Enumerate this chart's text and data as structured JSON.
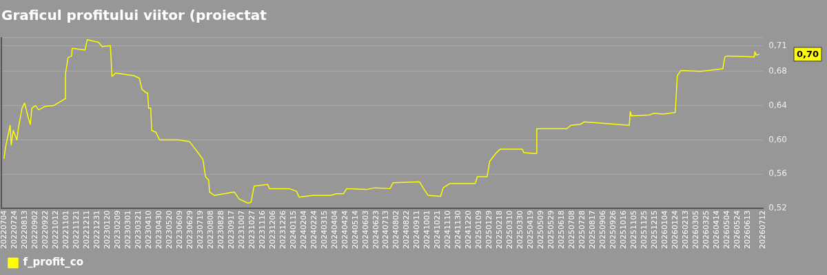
{
  "chart_data": {
    "type": "line",
    "title": "Graficul profitului viitor (proiectat",
    "legend": "bottom left",
    "grid": "y",
    "xlim": [
      "2022-06-29",
      "2026-07-12"
    ],
    "ylim": [
      0.52,
      0.72
    ],
    "yticks": [
      {
        "value": 0.52,
        "label": "0,52"
      },
      {
        "value": 0.56,
        "label": "0,56"
      },
      {
        "value": 0.6,
        "label": "0,60"
      },
      {
        "value": 0.64,
        "label": "0,64"
      },
      {
        "value": 0.68,
        "label": "0,68"
      },
      {
        "value": 0.71,
        "label": "0,71"
      },
      {
        "value": 0.72,
        "label": null
      }
    ],
    "xticks": [
      {
        "value": "2022-07-04",
        "label": "20220704"
      },
      {
        "value": "2022-07-24",
        "label": "20220724"
      },
      {
        "value": "2022-08-13",
        "label": "20220813"
      },
      {
        "value": "2022-09-02",
        "label": "20220902"
      },
      {
        "value": "2022-09-22",
        "label": "20220922"
      },
      {
        "value": "2022-10-12",
        "label": "20221012"
      },
      {
        "value": "2022-11-01",
        "label": "20221101"
      },
      {
        "value": "2022-11-21",
        "label": "20221121"
      },
      {
        "value": "2022-12-11",
        "label": "20221211"
      },
      {
        "value": "2022-12-31",
        "label": "20221231"
      },
      {
        "value": "2023-01-20",
        "label": "20230120"
      },
      {
        "value": "2023-02-09",
        "label": "20230209"
      },
      {
        "value": "2023-03-01",
        "label": "20230301"
      },
      {
        "value": "2023-03-21",
        "label": "20230321"
      },
      {
        "value": "2023-04-10",
        "label": "20230410"
      },
      {
        "value": "2023-04-30",
        "label": "20230430"
      },
      {
        "value": "2023-05-20",
        "label": "20230520"
      },
      {
        "value": "2023-06-09",
        "label": "20230609"
      },
      {
        "value": "2023-06-29",
        "label": "20230629"
      },
      {
        "value": "2023-07-19",
        "label": "20230719"
      },
      {
        "value": "2023-08-08",
        "label": "20230808"
      },
      {
        "value": "2023-08-28",
        "label": "20230828"
      },
      {
        "value": "2023-09-17",
        "label": "20230917"
      },
      {
        "value": "2023-10-07",
        "label": "20231007"
      },
      {
        "value": "2023-10-27",
        "label": "20231027"
      },
      {
        "value": "2023-11-16",
        "label": "20231116"
      },
      {
        "value": "2023-12-06",
        "label": "20231206"
      },
      {
        "value": "2023-12-26",
        "label": "20231226"
      },
      {
        "value": "2024-01-15",
        "label": "20240115"
      },
      {
        "value": "2024-02-04",
        "label": "20240204"
      },
      {
        "value": "2024-02-24",
        "label": "20240224"
      },
      {
        "value": "2024-03-15",
        "label": "20240315"
      },
      {
        "value": "2024-04-04",
        "label": "20240404"
      },
      {
        "value": "2024-04-24",
        "label": "20240424"
      },
      {
        "value": "2024-05-14",
        "label": "20240514"
      },
      {
        "value": "2024-06-03",
        "label": "20240603"
      },
      {
        "value": "2024-06-23",
        "label": "20240623"
      },
      {
        "value": "2024-07-13",
        "label": "20240713"
      },
      {
        "value": "2024-08-02",
        "label": "20240802"
      },
      {
        "value": "2024-08-22",
        "label": "20240822"
      },
      {
        "value": "2024-09-11",
        "label": "20240911"
      },
      {
        "value": "2024-10-01",
        "label": "20241001"
      },
      {
        "value": "2024-10-21",
        "label": "20241021"
      },
      {
        "value": "2024-11-10",
        "label": "20241110"
      },
      {
        "value": "2024-11-30",
        "label": "20241130"
      },
      {
        "value": "2024-12-20",
        "label": "20241220"
      },
      {
        "value": "2025-01-09",
        "label": "20250109"
      },
      {
        "value": "2025-01-29",
        "label": "20250129"
      },
      {
        "value": "2025-02-18",
        "label": "20250218"
      },
      {
        "value": "2025-03-10",
        "label": "20250310"
      },
      {
        "value": "2025-03-30",
        "label": "20250330"
      },
      {
        "value": "2025-04-19",
        "label": "20250419"
      },
      {
        "value": "2025-05-09",
        "label": "20250509"
      },
      {
        "value": "2025-05-29",
        "label": "20250529"
      },
      {
        "value": "2025-06-18",
        "label": "20250618"
      },
      {
        "value": "2025-07-08",
        "label": "20250708"
      },
      {
        "value": "2025-07-28",
        "label": "20250728"
      },
      {
        "value": "2025-08-17",
        "label": "20250817"
      },
      {
        "value": "2025-09-06",
        "label": "20250906"
      },
      {
        "value": "2025-09-26",
        "label": "20250926"
      },
      {
        "value": "2025-10-16",
        "label": "20251016"
      },
      {
        "value": "2025-11-05",
        "label": "20251105"
      },
      {
        "value": "2025-11-25",
        "label": "20251125"
      },
      {
        "value": "2025-12-15",
        "label": "20251215"
      },
      {
        "value": "2026-01-04",
        "label": "20260104"
      },
      {
        "value": "2026-01-24",
        "label": "20260124"
      },
      {
        "value": "2026-02-13",
        "label": "20260213"
      },
      {
        "value": "2026-03-05",
        "label": "20260305"
      },
      {
        "value": "2026-03-25",
        "label": "20260325"
      },
      {
        "value": "2026-04-14",
        "label": "20260414"
      },
      {
        "value": "2026-05-04",
        "label": "20260504"
      },
      {
        "value": "2026-05-24",
        "label": "20260524"
      },
      {
        "value": "2026-06-13",
        "label": "20260613"
      },
      {
        "value": "2026-07-12",
        "label": "20260712"
      }
    ],
    "annotations": [
      "0,70"
    ],
    "series": [
      {
        "name": "f_profit_co",
        "color": "#ffff00",
        "x": [
          "2022-07-04",
          "2022-07-07",
          "2022-07-16",
          "2022-07-18",
          "2022-07-22",
          "2022-07-29",
          "2022-08-01",
          "2022-08-08",
          "2022-08-13",
          "2022-08-20",
          "2022-08-24",
          "2022-08-27",
          "2022-09-03",
          "2022-09-09",
          "2022-09-21",
          "2022-10-08",
          "2022-10-25",
          "2022-10-30",
          "2022-10-31",
          "2022-11-05",
          "2022-11-12",
          "2022-11-13",
          "2022-12-08",
          "2022-12-12",
          "2023-01-03",
          "2023-01-10",
          "2023-01-26",
          "2023-01-29",
          "2023-02-05",
          "2023-03-12",
          "2023-03-23",
          "2023-03-28",
          "2023-04-05",
          "2023-04-08",
          "2023-04-10",
          "2023-04-14",
          "2023-04-16",
          "2023-04-24",
          "2023-05-01",
          "2023-06-07",
          "2023-06-28",
          "2023-07-07",
          "2023-07-17",
          "2023-07-24",
          "2023-07-29",
          "2023-08-04",
          "2023-08-06",
          "2023-08-15",
          "2023-09-23",
          "2023-10-02",
          "2023-10-19",
          "2023-10-25",
          "2023-10-31",
          "2023-11-26",
          "2023-11-30",
          "2024-01-07",
          "2024-01-21",
          "2024-01-26",
          "2024-02-21",
          "2024-03-26",
          "2024-04-08",
          "2024-04-21",
          "2024-04-27",
          "2024-06-04",
          "2024-06-21",
          "2024-07-20",
          "2024-07-26",
          "2024-09-15",
          "2024-09-23",
          "2024-10-02",
          "2024-10-26",
          "2024-10-31",
          "2024-11-13",
          "2025-01-01",
          "2025-01-05",
          "2025-01-24",
          "2025-01-29",
          "2025-02-11",
          "2025-02-18",
          "2025-04-02",
          "2025-04-05",
          "2025-04-25",
          "2025-04-29",
          "2025-04-30",
          "2025-06-27",
          "2025-07-05",
          "2025-07-23",
          "2025-07-31",
          "2025-10-26",
          "2025-10-28",
          "2025-10-30",
          "2025-12-04",
          "2025-12-13",
          "2025-12-30",
          "2026-01-23",
          "2026-01-27",
          "2026-02-03",
          "2026-03-13",
          "2026-04-25",
          "2026-04-29",
          "2026-05-04",
          "2026-06-25",
          "2026-06-26",
          "2026-06-29",
          "2026-07-05"
        ],
        "values": [
          0.578,
          0.591,
          0.617,
          0.594,
          0.611,
          0.6,
          0.614,
          0.637,
          0.643,
          0.626,
          0.618,
          0.637,
          0.64,
          0.635,
          0.639,
          0.64,
          0.646,
          0.648,
          0.677,
          0.696,
          0.698,
          0.707,
          0.705,
          0.717,
          0.714,
          0.709,
          0.71,
          0.674,
          0.678,
          0.675,
          0.672,
          0.659,
          0.655,
          0.655,
          0.637,
          0.637,
          0.611,
          0.609,
          0.6,
          0.6,
          0.598,
          0.591,
          0.583,
          0.577,
          0.557,
          0.553,
          0.539,
          0.535,
          0.539,
          0.531,
          0.526,
          0.527,
          0.546,
          0.548,
          0.543,
          0.543,
          0.54,
          0.533,
          0.535,
          0.535,
          0.537,
          0.537,
          0.543,
          0.542,
          0.544,
          0.543,
          0.55,
          0.551,
          0.543,
          0.535,
          0.534,
          0.544,
          0.549,
          0.549,
          0.557,
          0.557,
          0.575,
          0.585,
          0.589,
          0.589,
          0.585,
          0.584,
          0.584,
          0.613,
          0.613,
          0.617,
          0.618,
          0.621,
          0.617,
          0.633,
          0.628,
          0.629,
          0.631,
          0.63,
          0.632,
          0.675,
          0.681,
          0.68,
          0.683,
          0.697,
          0.698,
          0.697,
          0.703,
          0.699,
          0.7
        ]
      }
    ]
  }
}
